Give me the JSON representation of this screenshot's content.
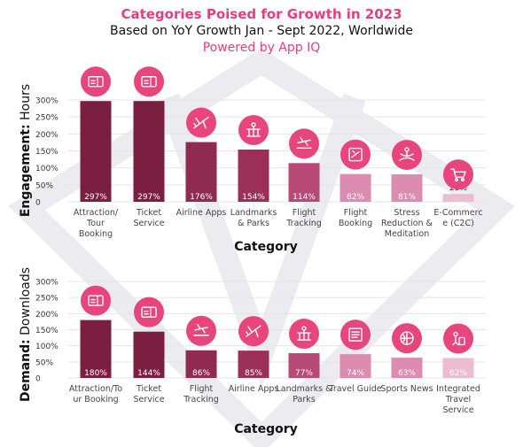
{
  "header": {
    "title": "Categories Poised for Growth in 2023",
    "subtitle": "Based on YoY Growth Jan - Sept 2022, Worldwide",
    "powered_by": "Powered by App IQ"
  },
  "colors": {
    "title_pink": "#e83e7d",
    "icon_circle": "#e8457d",
    "bar_shades": [
      "#7a1f40",
      "#7a1f40",
      "#8f2a50",
      "#9a3058",
      "#b84a78",
      "#dc8cb0",
      "#dc8cb0",
      "#ecbcd2"
    ],
    "watermark": "#ececf0"
  },
  "chart_data": [
    {
      "type": "bar",
      "title": "",
      "ylabel_bold": "Engagement:",
      "ylabel_rest": " Hours",
      "xlabel": "Category",
      "ylim": [
        0,
        300
      ],
      "yticks": [
        "0",
        "50%",
        "100%",
        "150%",
        "200%",
        "250%",
        "300%"
      ],
      "grid": true,
      "categories": [
        [
          "Attraction/",
          "Tour",
          "Booking"
        ],
        [
          "Ticket",
          "Service"
        ],
        [
          "Airline Apps"
        ],
        [
          "Landmarks",
          "& Parks"
        ],
        [
          "Flight",
          "Tracking"
        ],
        [
          "Flight",
          "Booking"
        ],
        [
          "Stress",
          "Reduction &",
          "Meditation"
        ],
        [
          "E-Commerc",
          "e (C2C)"
        ]
      ],
      "values": [
        297,
        297,
        176,
        154,
        114,
        82,
        81,
        23
      ],
      "value_labels": [
        "297%",
        "297%",
        "176%",
        "154%",
        "114%",
        "82%",
        "81%",
        "23%"
      ],
      "icons": [
        "ticket-icon",
        "ticket-icon",
        "airplane-icon",
        "landmark-icon",
        "flight-icon",
        "booking-icon",
        "meditation-icon",
        "cart-icon"
      ]
    },
    {
      "type": "bar",
      "title": "",
      "ylabel_bold": "Demand:",
      "ylabel_rest": " Downloads",
      "xlabel": "Category",
      "ylim": [
        0,
        300
      ],
      "yticks": [
        "0",
        "50%",
        "100%",
        "150%",
        "200%",
        "250%",
        "300%"
      ],
      "grid": true,
      "categories": [
        [
          "Attraction/To",
          "ur Booking"
        ],
        [
          "Ticket",
          "Service"
        ],
        [
          "Flight",
          "Tracking"
        ],
        [
          "Airline Apps"
        ],
        [
          "Landmarks &",
          "Parks"
        ],
        [
          "Travel Guide"
        ],
        [
          "Sports News"
        ],
        [
          "Integrated",
          "Travel",
          "Service"
        ]
      ],
      "values": [
        180,
        144,
        86,
        85,
        77,
        74,
        63,
        62
      ],
      "value_labels": [
        "180%",
        "144%",
        "86%",
        "85%",
        "77%",
        "74%",
        "63%",
        "62%"
      ],
      "icons": [
        "ticket-icon",
        "ticket-icon",
        "flight-icon",
        "airplane-icon",
        "landmark-icon",
        "guide-icon",
        "sports-icon",
        "travel-service-icon"
      ]
    }
  ]
}
